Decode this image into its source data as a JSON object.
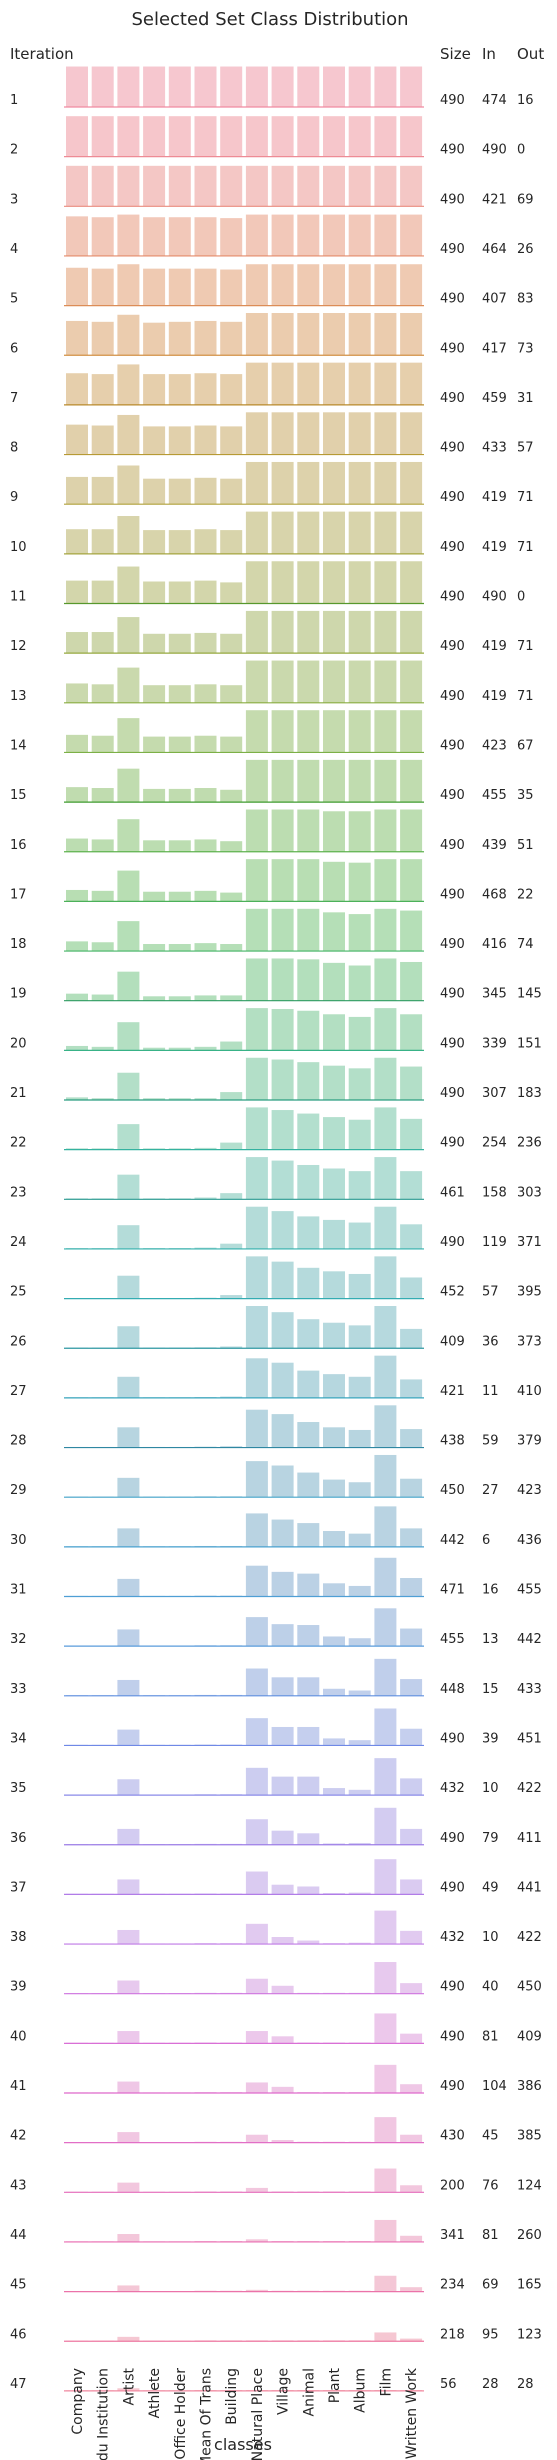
{
  "chart_data": {
    "type": "bar",
    "title": "Selected Set Class Distribution",
    "xlabel": "classes",
    "row_header": "Iteration",
    "stats_headers": [
      "Size",
      "In",
      "Out"
    ],
    "categories": [
      "Company",
      "Edu Institution",
      "Artist",
      "Athlete",
      "Office Holder",
      "Mean Of Trans",
      "Building",
      "Natural Place",
      "Village",
      "Animal",
      "Plant",
      "Album",
      "Film",
      "Written Work"
    ],
    "iterations": [
      {
        "label": "1",
        "size": 490,
        "in": 474,
        "out": 16,
        "color": "#f6c7cf",
        "line": "#f08aa0"
      },
      {
        "label": "2",
        "size": 490,
        "in": 490,
        "out": 0,
        "color": "#f6c6cb",
        "line": "#ee8b95"
      },
      {
        "label": "3",
        "size": 490,
        "in": 421,
        "out": 69,
        "color": "#f4c7c5",
        "line": "#ea8b7f"
      },
      {
        "label": "4",
        "size": 490,
        "in": 464,
        "out": 26,
        "color": "#f2c8b9",
        "line": "#e48a6a"
      },
      {
        "label": "5",
        "size": 490,
        "in": 407,
        "out": 83,
        "color": "#efcab2",
        "line": "#dc8d57"
      },
      {
        "label": "6",
        "size": 490,
        "in": 417,
        "out": 73,
        "color": "#ebccae",
        "line": "#d39145"
      },
      {
        "label": "7",
        "size": 490,
        "in": 459,
        "out": 31,
        "color": "#e6cfac",
        "line": "#b88a2b"
      },
      {
        "label": "8",
        "size": 490,
        "in": 433,
        "out": 57,
        "color": "#e1d0ab",
        "line": "#b79a34"
      },
      {
        "label": "9",
        "size": 490,
        "in": 419,
        "out": 71,
        "color": "#ddd2ab",
        "line": "#b0a03a"
      },
      {
        "label": "10",
        "size": 490,
        "in": 419,
        "out": 71,
        "color": "#d8d4ab",
        "line": "#a6a540"
      },
      {
        "label": "11",
        "size": 490,
        "in": 490,
        "out": 0,
        "color": "#d3d6ab",
        "line": "#57982d"
      },
      {
        "label": "12",
        "size": 490,
        "in": 419,
        "out": 71,
        "color": "#ced7ac",
        "line": "#95a93f"
      },
      {
        "label": "13",
        "size": 490,
        "in": 419,
        "out": 71,
        "color": "#cad9ad",
        "line": "#8aad42"
      },
      {
        "label": "14",
        "size": 490,
        "in": 423,
        "out": 67,
        "color": "#c5dbae",
        "line": "#7cb046"
      },
      {
        "label": "15",
        "size": 490,
        "in": 455,
        "out": 35,
        "color": "#c0dcaf",
        "line": "#3e9b2e"
      },
      {
        "label": "16",
        "size": 490,
        "in": 439,
        "out": 51,
        "color": "#bcddb1",
        "line": "#5fb24f"
      },
      {
        "label": "17",
        "size": 490,
        "in": 468,
        "out": 22,
        "color": "#b8deb3",
        "line": "#4cb15a"
      },
      {
        "label": "18",
        "size": 490,
        "in": 416,
        "out": 74,
        "color": "#b5dfb7",
        "line": "#43b466"
      },
      {
        "label": "19",
        "size": 490,
        "in": 345,
        "out": 145,
        "color": "#b3dfbc",
        "line": "#2f9b62"
      },
      {
        "label": "20",
        "size": 490,
        "in": 339,
        "out": 151,
        "color": "#b3dfc2",
        "line": "#38b287"
      },
      {
        "label": "21",
        "size": 490,
        "in": 307,
        "out": 183,
        "color": "#b3dfc8",
        "line": "#2a9e80"
      },
      {
        "label": "22",
        "size": 490,
        "in": 254,
        "out": 236,
        "color": "#b3dfce",
        "line": "#34b2a0"
      },
      {
        "label": "23",
        "size": 461,
        "in": 158,
        "out": 303,
        "color": "#b3ded5",
        "line": "#2a9a91"
      },
      {
        "label": "24",
        "size": 490,
        "in": 119,
        "out": 371,
        "color": "#b4dcd9",
        "line": "#31b0ad"
      },
      {
        "label": "25",
        "size": 452,
        "in": 57,
        "out": 395,
        "color": "#b5dadc",
        "line": "#33acb2"
      },
      {
        "label": "26",
        "size": 409,
        "in": 36,
        "out": 373,
        "color": "#b6d9de",
        "line": "#2f98a3"
      },
      {
        "label": "27",
        "size": 421,
        "in": 11,
        "out": 410,
        "color": "#b6d7df",
        "line": "#3aa6bd"
      },
      {
        "label": "28",
        "size": 438,
        "in": 59,
        "out": 379,
        "color": "#b7d5e0",
        "line": "#2f87a2"
      },
      {
        "label": "29",
        "size": 450,
        "in": 27,
        "out": 423,
        "color": "#b8d4e1",
        "line": "#44a4c9"
      },
      {
        "label": "30",
        "size": 442,
        "in": 6,
        "out": 436,
        "color": "#b9d3e2",
        "line": "#4aa2cf"
      },
      {
        "label": "31",
        "size": 471,
        "in": 16,
        "out": 455,
        "color": "#bbd1e5",
        "line": "#4f9fd5"
      },
      {
        "label": "32",
        "size": 455,
        "in": 13,
        "out": 442,
        "color": "#bdd0e8",
        "line": "#589bdb"
      },
      {
        "label": "33",
        "size": 448,
        "in": 15,
        "out": 433,
        "color": "#c0cfeb",
        "line": "#5f8fe0"
      },
      {
        "label": "34",
        "size": 490,
        "in": 39,
        "out": 451,
        "color": "#c5cfee",
        "line": "#6f89e6"
      },
      {
        "label": "35",
        "size": 432,
        "in": 10,
        "out": 422,
        "color": "#cccdf0",
        "line": "#8a8ae8"
      },
      {
        "label": "36",
        "size": 490,
        "in": 79,
        "out": 411,
        "color": "#d3ccf1",
        "line": "#9d7ee6"
      },
      {
        "label": "37",
        "size": 490,
        "in": 49,
        "out": 441,
        "color": "#dacbf1",
        "line": "#b17ce8"
      },
      {
        "label": "38",
        "size": 432,
        "in": 10,
        "out": 422,
        "color": "#e1caf0",
        "line": "#c07ae6"
      },
      {
        "label": "39",
        "size": 490,
        "in": 40,
        "out": 450,
        "color": "#e7c9ee",
        "line": "#cf74df"
      },
      {
        "label": "40",
        "size": 490,
        "in": 81,
        "out": 409,
        "color": "#ecc8eb",
        "line": "#d96fd6"
      },
      {
        "label": "41",
        "size": 490,
        "in": 104,
        "out": 386,
        "color": "#efc7e6",
        "line": "#df6acc"
      },
      {
        "label": "42",
        "size": 430,
        "in": 45,
        "out": 385,
        "color": "#f1c7e2",
        "line": "#e26ec6"
      },
      {
        "label": "43",
        "size": 200,
        "in": 76,
        "out": 124,
        "color": "#f2c7de",
        "line": "#e56dbc"
      },
      {
        "label": "44",
        "size": 341,
        "in": 81,
        "out": 260,
        "color": "#f3c7da",
        "line": "#e96cb2"
      },
      {
        "label": "45",
        "size": 234,
        "in": 69,
        "out": 165,
        "color": "#f4c7d6",
        "line": "#eb73a9"
      },
      {
        "label": "46",
        "size": 218,
        "in": 95,
        "out": 123,
        "color": "#f5c7d2",
        "line": "#ee79a2"
      },
      {
        "label": "47",
        "size": 56,
        "in": 28,
        "out": 28,
        "color": "#f6c7cf",
        "line": "#f08aa0"
      }
    ],
    "values": [
      [
        0.92,
        0.92,
        0.92,
        0.92,
        0.92,
        0.92,
        0.92,
        0.92,
        0.92,
        0.92,
        0.92,
        0.92,
        0.92,
        0.92
      ],
      [
        0.92,
        0.92,
        0.92,
        0.92,
        0.92,
        0.92,
        0.92,
        0.92,
        0.92,
        0.92,
        0.92,
        0.92,
        0.92,
        0.92
      ],
      [
        0.92,
        0.92,
        0.92,
        0.92,
        0.92,
        0.92,
        0.92,
        0.92,
        0.92,
        0.92,
        0.92,
        0.92,
        0.92,
        0.92
      ],
      [
        0.9,
        0.88,
        0.94,
        0.88,
        0.88,
        0.88,
        0.86,
        0.94,
        0.94,
        0.94,
        0.94,
        0.94,
        0.94,
        0.94
      ],
      [
        0.86,
        0.84,
        0.94,
        0.84,
        0.84,
        0.84,
        0.82,
        0.94,
        0.94,
        0.94,
        0.94,
        0.94,
        0.94,
        0.94
      ],
      [
        0.78,
        0.76,
        0.92,
        0.74,
        0.76,
        0.78,
        0.76,
        0.96,
        0.96,
        0.96,
        0.96,
        0.96,
        0.96,
        0.96
      ],
      [
        0.72,
        0.7,
        0.92,
        0.7,
        0.7,
        0.72,
        0.7,
        0.96,
        0.96,
        0.96,
        0.96,
        0.96,
        0.96,
        0.96
      ],
      [
        0.68,
        0.66,
        0.9,
        0.64,
        0.64,
        0.66,
        0.64,
        0.96,
        0.96,
        0.96,
        0.96,
        0.96,
        0.96,
        0.96
      ],
      [
        0.62,
        0.62,
        0.88,
        0.58,
        0.58,
        0.6,
        0.58,
        0.96,
        0.96,
        0.96,
        0.96,
        0.96,
        0.96,
        0.96
      ],
      [
        0.56,
        0.56,
        0.86,
        0.54,
        0.54,
        0.56,
        0.54,
        0.96,
        0.96,
        0.96,
        0.96,
        0.96,
        0.96,
        0.96
      ],
      [
        0.52,
        0.52,
        0.84,
        0.5,
        0.5,
        0.52,
        0.48,
        0.96,
        0.96,
        0.96,
        0.96,
        0.96,
        0.96,
        0.96
      ],
      [
        0.48,
        0.48,
        0.82,
        0.44,
        0.44,
        0.46,
        0.44,
        0.96,
        0.96,
        0.96,
        0.96,
        0.96,
        0.96,
        0.96
      ],
      [
        0.44,
        0.42,
        0.8,
        0.4,
        0.4,
        0.42,
        0.4,
        0.96,
        0.96,
        0.96,
        0.96,
        0.96,
        0.96,
        0.96
      ],
      [
        0.4,
        0.38,
        0.78,
        0.36,
        0.36,
        0.38,
        0.36,
        0.96,
        0.96,
        0.96,
        0.96,
        0.96,
        0.96,
        0.96
      ],
      [
        0.34,
        0.32,
        0.76,
        0.3,
        0.3,
        0.32,
        0.28,
        0.96,
        0.96,
        0.96,
        0.96,
        0.96,
        0.96,
        0.96
      ],
      [
        0.3,
        0.28,
        0.74,
        0.26,
        0.26,
        0.28,
        0.24,
        0.96,
        0.96,
        0.96,
        0.92,
        0.92,
        0.96,
        0.96
      ],
      [
        0.26,
        0.24,
        0.7,
        0.22,
        0.22,
        0.24,
        0.2,
        0.96,
        0.96,
        0.96,
        0.9,
        0.88,
        0.96,
        0.96
      ],
      [
        0.22,
        0.2,
        0.68,
        0.16,
        0.16,
        0.18,
        0.16,
        0.96,
        0.96,
        0.96,
        0.88,
        0.84,
        0.96,
        0.92
      ],
      [
        0.16,
        0.14,
        0.66,
        0.1,
        0.1,
        0.12,
        0.12,
        0.96,
        0.96,
        0.94,
        0.86,
        0.8,
        0.96,
        0.88
      ],
      [
        0.1,
        0.08,
        0.64,
        0.06,
        0.06,
        0.08,
        0.2,
        0.96,
        0.94,
        0.9,
        0.82,
        0.76,
        0.96,
        0.82
      ],
      [
        0.06,
        0.04,
        0.62,
        0.04,
        0.04,
        0.04,
        0.18,
        0.96,
        0.92,
        0.86,
        0.78,
        0.72,
        0.96,
        0.76
      ],
      [
        0.03,
        0.03,
        0.58,
        0.03,
        0.03,
        0.04,
        0.16,
        0.96,
        0.9,
        0.82,
        0.74,
        0.68,
        0.96,
        0.7
      ],
      [
        0.02,
        0.02,
        0.56,
        0.02,
        0.02,
        0.04,
        0.14,
        0.96,
        0.88,
        0.78,
        0.7,
        0.64,
        0.96,
        0.64
      ],
      [
        0.02,
        0.02,
        0.54,
        0.02,
        0.02,
        0.03,
        0.12,
        0.96,
        0.86,
        0.74,
        0.66,
        0.6,
        0.96,
        0.56
      ],
      [
        0.01,
        0.01,
        0.52,
        0.01,
        0.01,
        0.02,
        0.08,
        0.96,
        0.84,
        0.7,
        0.62,
        0.56,
        0.96,
        0.48
      ],
      [
        0.01,
        0.01,
        0.5,
        0.01,
        0.01,
        0.02,
        0.04,
        0.96,
        0.82,
        0.66,
        0.58,
        0.52,
        0.96,
        0.44
      ],
      [
        0.01,
        0.01,
        0.48,
        0.01,
        0.01,
        0.02,
        0.03,
        0.9,
        0.8,
        0.62,
        0.54,
        0.48,
        0.96,
        0.42
      ],
      [
        0.01,
        0.01,
        0.46,
        0.01,
        0.01,
        0.02,
        0.03,
        0.86,
        0.76,
        0.58,
        0.46,
        0.4,
        0.96,
        0.42
      ],
      [
        0.01,
        0.01,
        0.44,
        0.01,
        0.01,
        0.02,
        0.02,
        0.82,
        0.72,
        0.56,
        0.4,
        0.34,
        0.96,
        0.42
      ],
      [
        0.01,
        0.01,
        0.42,
        0.01,
        0.01,
        0.02,
        0.02,
        0.76,
        0.62,
        0.54,
        0.36,
        0.3,
        0.92,
        0.42
      ],
      [
        0.01,
        0.01,
        0.4,
        0.01,
        0.01,
        0.02,
        0.02,
        0.7,
        0.56,
        0.52,
        0.3,
        0.24,
        0.88,
        0.42
      ],
      [
        0.01,
        0.01,
        0.38,
        0.01,
        0.01,
        0.02,
        0.02,
        0.66,
        0.5,
        0.48,
        0.22,
        0.18,
        0.86,
        0.4
      ],
      [
        0.01,
        0.01,
        0.36,
        0.01,
        0.01,
        0.02,
        0.02,
        0.62,
        0.42,
        0.42,
        0.16,
        0.12,
        0.84,
        0.38
      ],
      [
        0.01,
        0.01,
        0.36,
        0.01,
        0.01,
        0.02,
        0.02,
        0.62,
        0.42,
        0.42,
        0.16,
        0.12,
        0.84,
        0.38
      ],
      [
        0.01,
        0.01,
        0.36,
        0.01,
        0.01,
        0.02,
        0.02,
        0.62,
        0.42,
        0.42,
        0.16,
        0.12,
        0.84,
        0.38
      ],
      [
        0.01,
        0.01,
        0.36,
        0.01,
        0.01,
        0.02,
        0.02,
        0.58,
        0.32,
        0.26,
        0.03,
        0.04,
        0.84,
        0.36
      ],
      [
        0.01,
        0.01,
        0.34,
        0.01,
        0.01,
        0.02,
        0.02,
        0.52,
        0.22,
        0.18,
        0.03,
        0.04,
        0.8,
        0.34
      ],
      [
        0.01,
        0.01,
        0.32,
        0.01,
        0.01,
        0.02,
        0.02,
        0.46,
        0.16,
        0.08,
        0.02,
        0.03,
        0.76,
        0.3
      ],
      [
        0.01,
        0.01,
        0.3,
        0.01,
        0.01,
        0.02,
        0.02,
        0.34,
        0.18,
        0.02,
        0.02,
        0.02,
        0.72,
        0.24
      ],
      [
        0.01,
        0.01,
        0.28,
        0.01,
        0.01,
        0.02,
        0.02,
        0.28,
        0.16,
        0.02,
        0.02,
        0.02,
        0.68,
        0.22
      ],
      [
        0.01,
        0.01,
        0.26,
        0.01,
        0.01,
        0.02,
        0.02,
        0.24,
        0.14,
        0.02,
        0.02,
        0.02,
        0.64,
        0.2
      ],
      [
        0.01,
        0.01,
        0.24,
        0.01,
        0.01,
        0.02,
        0.02,
        0.18,
        0.06,
        0.02,
        0.02,
        0.02,
        0.58,
        0.18
      ],
      [
        0.01,
        0.01,
        0.22,
        0.01,
        0.01,
        0.02,
        0.02,
        0.1,
        0.02,
        0.02,
        0.02,
        0.02,
        0.54,
        0.16
      ],
      [
        0.01,
        0.01,
        0.18,
        0.01,
        0.01,
        0.02,
        0.02,
        0.06,
        0.02,
        0.02,
        0.02,
        0.02,
        0.5,
        0.14
      ],
      [
        0.01,
        0.01,
        0.14,
        0.01,
        0.01,
        0.02,
        0.02,
        0.04,
        0.02,
        0.02,
        0.02,
        0.02,
        0.36,
        0.1
      ],
      [
        0.01,
        0.01,
        0.1,
        0.01,
        0.01,
        0.02,
        0.02,
        0.02,
        0.02,
        0.02,
        0.02,
        0.02,
        0.2,
        0.06
      ],
      [
        0.01,
        0.01,
        0.06,
        0.01,
        0.01,
        0.02,
        0.02,
        0.02,
        0.02,
        0.02,
        0.02,
        0.02,
        0.02,
        0.02
      ]
    ],
    "ylim": [
      0,
      1
    ],
    "grid": false,
    "legend": "none"
  }
}
